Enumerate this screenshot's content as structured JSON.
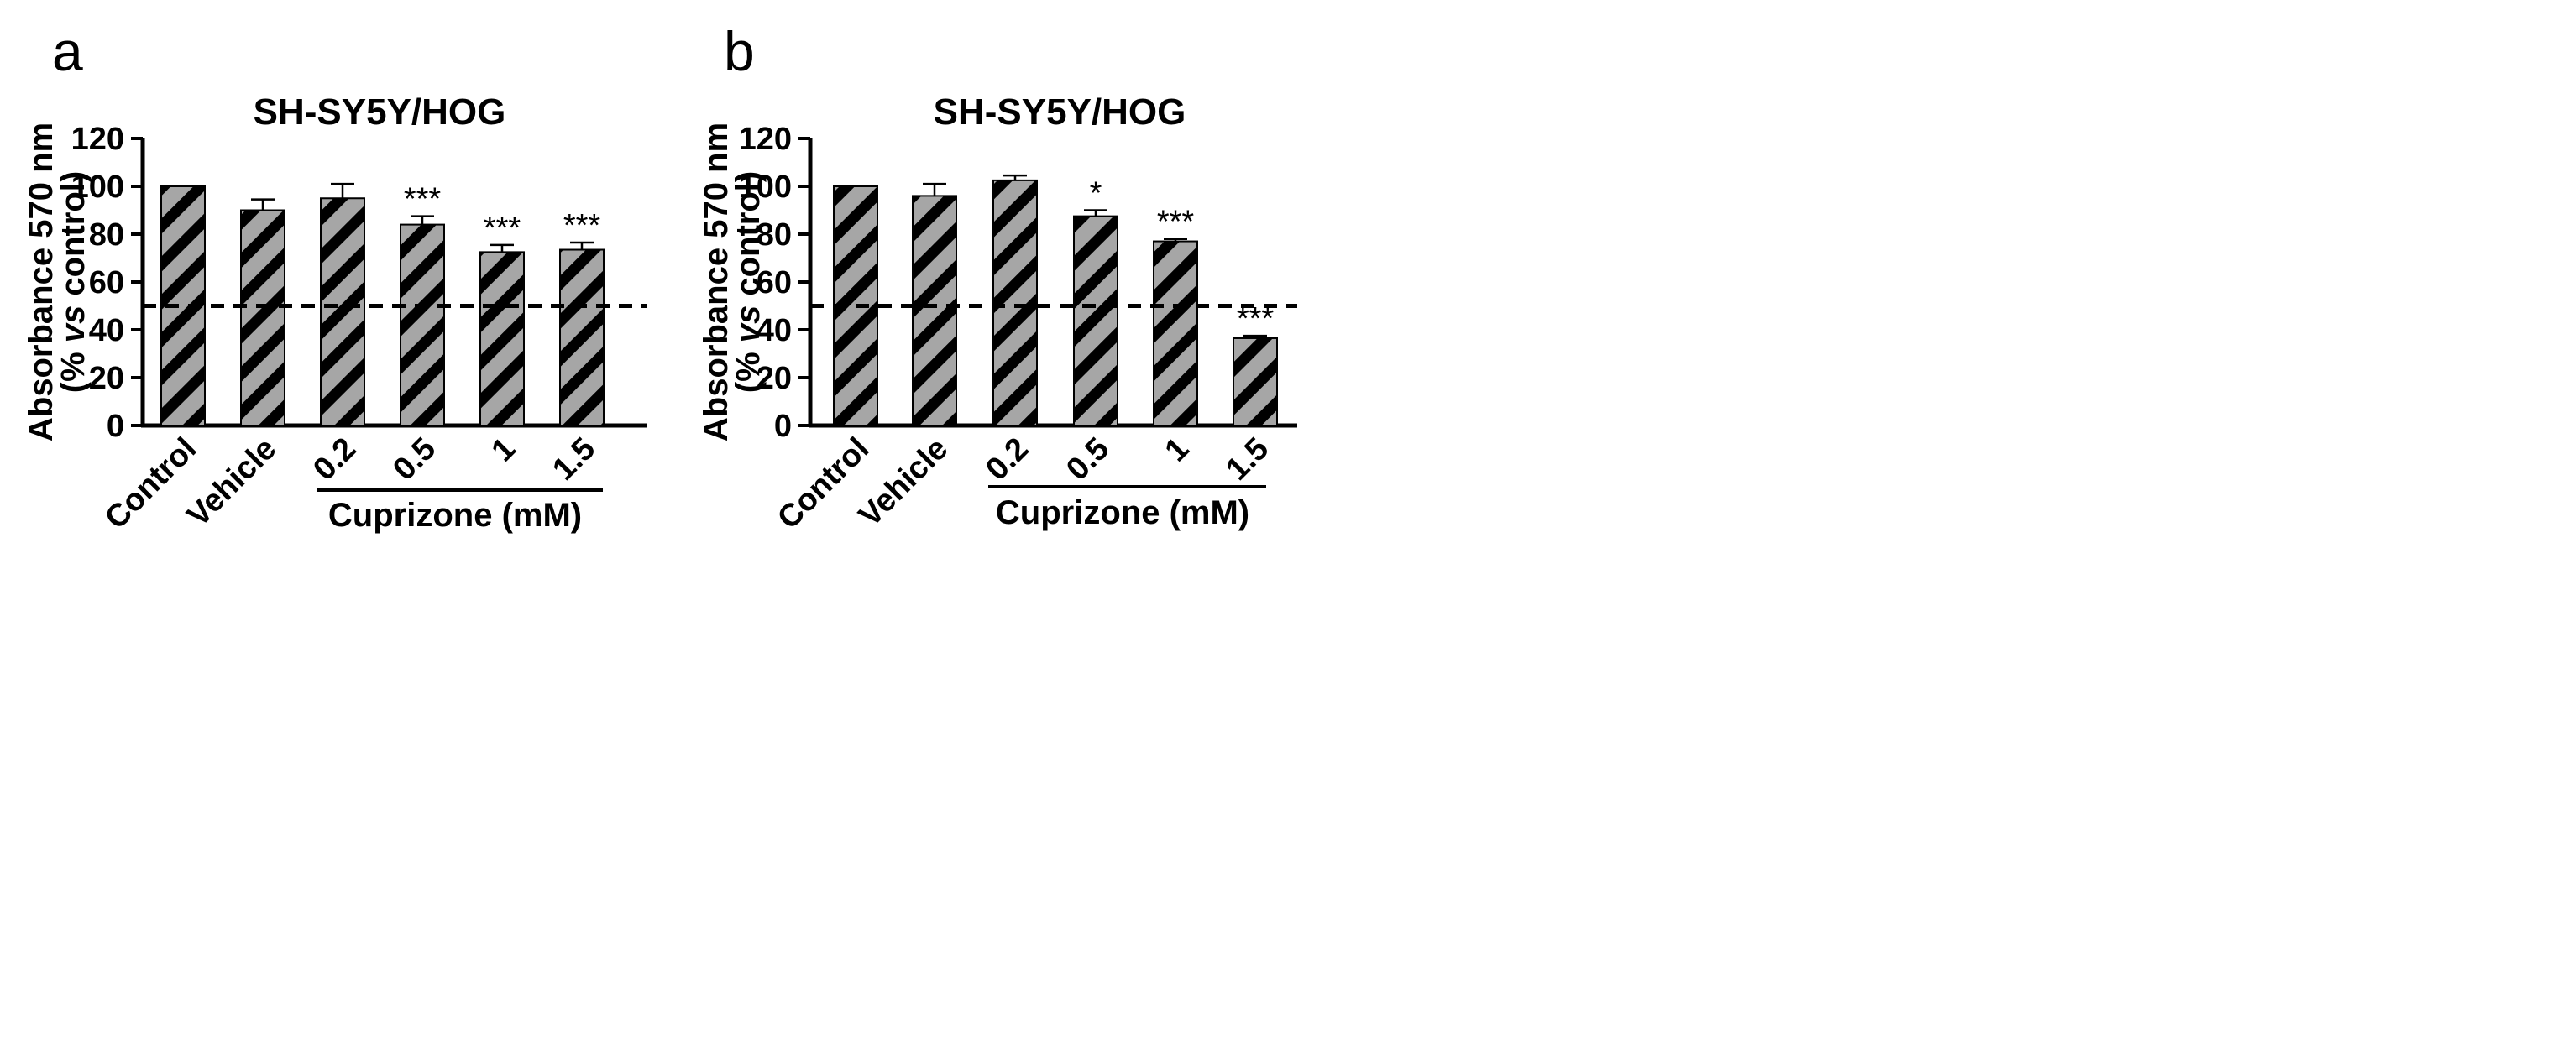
{
  "chart_data": [
    {
      "panel": "a",
      "type": "bar",
      "title": "SH-SY5Y/HOG",
      "ylabel_line1": "Absorbance 570 nm",
      "ylabel_line2_prefix": "(% ",
      "ylabel_line2_italic": "vs",
      "ylabel_line2_suffix": " control)",
      "ylim": [
        0,
        120
      ],
      "yticks": [
        0,
        20,
        40,
        60,
        80,
        100,
        120
      ],
      "categories": [
        "Control",
        "Vehicle",
        "0.2",
        "0.5",
        "1",
        "1.5"
      ],
      "values": [
        100,
        90,
        95,
        84,
        72.5,
        73.5
      ],
      "errors": [
        0,
        4.5,
        6,
        3.5,
        3,
        3
      ],
      "significance": [
        "",
        "",
        "",
        "***",
        "***",
        "***"
      ],
      "reference_line": 50,
      "group_label": "Cuprizone (mM)",
      "group_start_index": 2,
      "bar_fill": "#a6a6a6",
      "stripe_color": "#000000"
    },
    {
      "panel": "b",
      "type": "bar",
      "title": "SH-SY5Y/HOG",
      "ylabel_line1": "Absorbance 570 nm",
      "ylabel_line2_prefix": "(% ",
      "ylabel_line2_italic": "vs",
      "ylabel_line2_suffix": " control)",
      "ylim": [
        0,
        120
      ],
      "yticks": [
        0,
        20,
        40,
        60,
        80,
        100,
        120
      ],
      "categories": [
        "Control",
        "Vehicle",
        "0.2",
        "0.5",
        "1",
        "1.5"
      ],
      "values": [
        100,
        96,
        102.5,
        87.5,
        77,
        36.5
      ],
      "errors": [
        0,
        5,
        2,
        2.5,
        1,
        1
      ],
      "significance": [
        "",
        "",
        "",
        "*",
        "***",
        "***"
      ],
      "reference_line": 50,
      "group_label": "Cuprizone (mM)",
      "group_start_index": 2,
      "bar_fill": "#a6a6a6",
      "stripe_color": "#000000"
    }
  ]
}
